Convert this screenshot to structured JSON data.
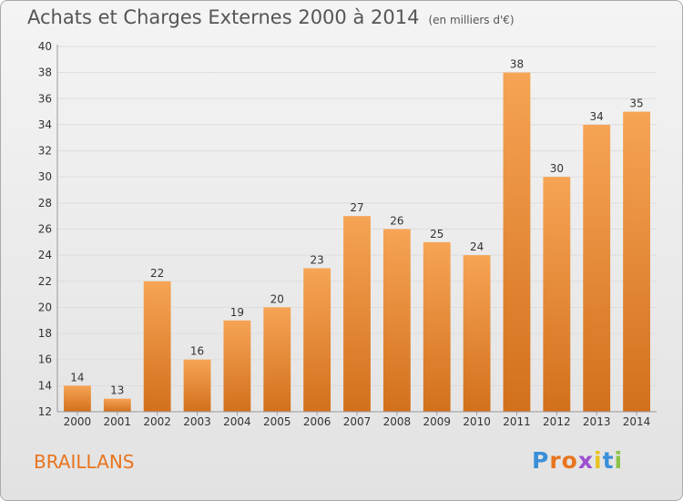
{
  "title": "Achats et Charges Externes 2000 à 2014",
  "subtitle": "(en milliers d'€)",
  "town": "BRAILLANS",
  "logo": {
    "text": "Proxiti",
    "colors": [
      "#3a8fd8",
      "#e8741e",
      "#e8741e",
      "#9c4fd0",
      "#e8c21e",
      "#3a8fd8",
      "#8bc34a"
    ]
  },
  "colors": {
    "bar_top": "#f6a455",
    "bar_bottom": "#d2701c",
    "grid": "#dddddd"
  },
  "chart_data": {
    "type": "bar",
    "categories": [
      "2000",
      "2001",
      "2002",
      "2003",
      "2004",
      "2005",
      "2006",
      "2007",
      "2008",
      "2009",
      "2010",
      "2011",
      "2012",
      "2013",
      "2014"
    ],
    "values": [
      14,
      13,
      22,
      16,
      19,
      20,
      23,
      27,
      26,
      25,
      24,
      38,
      30,
      34,
      35
    ],
    "ylim": [
      12,
      40
    ],
    "yticks": [
      12,
      14,
      16,
      18,
      20,
      22,
      24,
      26,
      28,
      30,
      32,
      34,
      36,
      38,
      40
    ],
    "grid": true
  }
}
